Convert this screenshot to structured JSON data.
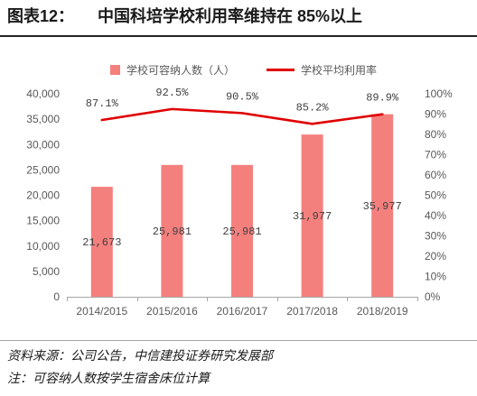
{
  "figure": {
    "label": "图表12：",
    "title": "中国科培学校利用率维持在 85%以上"
  },
  "legend": {
    "placement": "top"
  },
  "chart_data": {
    "type": "bar",
    "categories": [
      "2014/2015",
      "2015/2016",
      "2016/2017",
      "2017/2018",
      "2018/2019"
    ],
    "series": [
      {
        "name": "学校可容纳人数（人）",
        "type": "bar",
        "axis": "left",
        "color": "#F4807E",
        "values": [
          21673,
          25981,
          25981,
          31977,
          35977
        ],
        "labels": [
          "21,673",
          "25,981",
          "25,981",
          "31,977",
          "35,977"
        ]
      },
      {
        "name": "学校平均利用率",
        "type": "line",
        "axis": "right",
        "unit": "%",
        "color": "#E00000",
        "values": [
          87.1,
          92.5,
          90.5,
          85.2,
          89.9
        ],
        "labels": [
          "87.1%",
          "92.5%",
          "90.5%",
          "85.2%",
          "89.9%"
        ]
      }
    ],
    "y_left": {
      "range": [
        0,
        40000
      ],
      "step": 5000,
      "tick_labels": [
        "0",
        "5,000",
        "10,000",
        "15,000",
        "20,000",
        "25,000",
        "30,000",
        "35,000",
        "40,000"
      ]
    },
    "y_right": {
      "range": [
        0,
        100
      ],
      "step": 10,
      "tick_labels": [
        "0%",
        "10%",
        "20%",
        "30%",
        "40%",
        "50%",
        "60%",
        "70%",
        "80%",
        "90%",
        "100%"
      ]
    },
    "grid": false
  },
  "footer": {
    "source": "资料来源：公司公告，中信建投证券研究发展部",
    "note": "注：可容纳人数按学生宿舍床位计算"
  }
}
